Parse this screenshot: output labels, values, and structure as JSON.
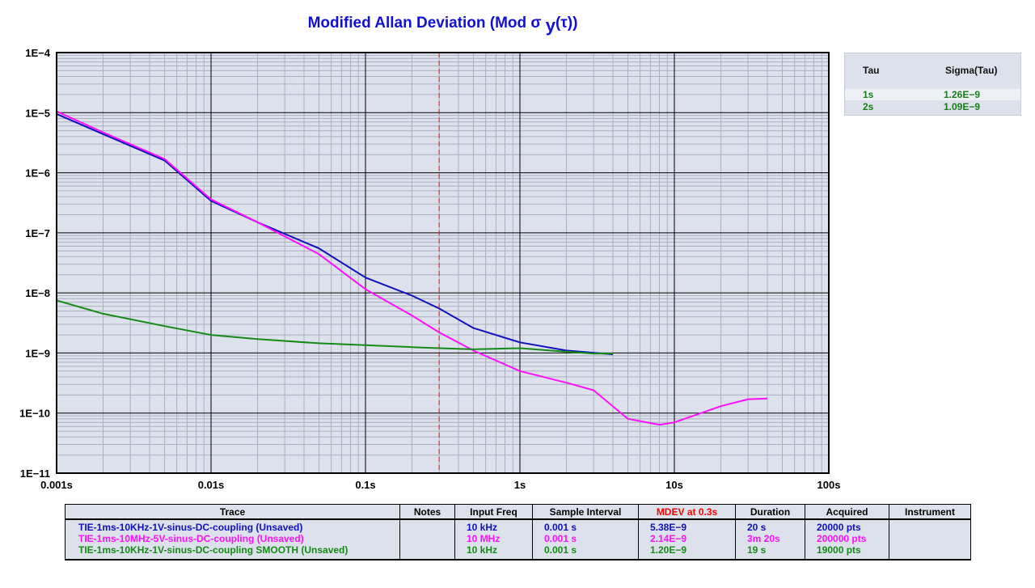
{
  "title_main": "Modified Allan Deviation (Mod σ ",
  "title_sub": "y",
  "title_end": "(τ))",
  "colors": {
    "plot_bg": "#dde1ec",
    "grid_major": "#000000",
    "grid_minor": "#a9b0c0",
    "marker": "#e01818"
  },
  "chart_data": {
    "type": "line",
    "title": "Modified Allan Deviation (Mod σ y(τ))",
    "x_scale": "log",
    "y_scale": "log",
    "xlim": [
      0.001,
      100
    ],
    "ylim": [
      1e-11,
      0.0001
    ],
    "x_ticks": [
      {
        "value": 0.001,
        "label": "0.001s"
      },
      {
        "value": 0.01,
        "label": "0.01s"
      },
      {
        "value": 0.1,
        "label": "0.1s"
      },
      {
        "value": 1,
        "label": "1s"
      },
      {
        "value": 10,
        "label": "10s"
      },
      {
        "value": 100,
        "label": "100s"
      }
    ],
    "y_ticks": [
      {
        "value": 0.0001,
        "label": "1E−4"
      },
      {
        "value": 1e-05,
        "label": "1E−5"
      },
      {
        "value": 1e-06,
        "label": "1E−6"
      },
      {
        "value": 1e-07,
        "label": "1E−7"
      },
      {
        "value": 1e-08,
        "label": "1E−8"
      },
      {
        "value": 1e-09,
        "label": "1E−9"
      },
      {
        "value": 1e-10,
        "label": "1E−10"
      },
      {
        "value": 1e-11,
        "label": "1E−11"
      }
    ],
    "grid": true,
    "marker_tau": 0.3,
    "series": [
      {
        "color": "#1010c0",
        "points": [
          [
            0.001,
            9.5e-06
          ],
          [
            0.002,
            4.4e-06
          ],
          [
            0.005,
            1.6e-06
          ],
          [
            0.01,
            3.4e-07
          ],
          [
            0.02,
            1.5e-07
          ],
          [
            0.05,
            5.5e-08
          ],
          [
            0.1,
            1.8e-08
          ],
          [
            0.2,
            9e-09
          ],
          [
            0.3,
            5.5e-09
          ],
          [
            0.5,
            2.6e-09
          ],
          [
            1,
            1.5e-09
          ],
          [
            2,
            1.1e-09
          ],
          [
            4,
            9.5e-10
          ]
        ]
      },
      {
        "color": "#ff10ff",
        "points": [
          [
            0.001,
            1.05e-05
          ],
          [
            0.002,
            4.7e-06
          ],
          [
            0.005,
            1.7e-06
          ],
          [
            0.01,
            3.6e-07
          ],
          [
            0.02,
            1.5e-07
          ],
          [
            0.05,
            4.4e-08
          ],
          [
            0.1,
            1.15e-08
          ],
          [
            0.2,
            4.2e-09
          ],
          [
            0.3,
            2.2e-09
          ],
          [
            0.5,
            1.1e-09
          ],
          [
            1,
            5e-10
          ],
          [
            2,
            3.2e-10
          ],
          [
            3,
            2.4e-10
          ],
          [
            5,
            8e-11
          ],
          [
            8,
            6.4e-11
          ],
          [
            10,
            7e-11
          ],
          [
            20,
            1.3e-10
          ],
          [
            30,
            1.7e-10
          ],
          [
            40,
            1.75e-10
          ]
        ]
      },
      {
        "color": "#148c14",
        "points": [
          [
            0.001,
            7.5e-09
          ],
          [
            0.002,
            4.5e-09
          ],
          [
            0.005,
            2.8e-09
          ],
          [
            0.01,
            2e-09
          ],
          [
            0.02,
            1.7e-09
          ],
          [
            0.05,
            1.45e-09
          ],
          [
            0.1,
            1.35e-09
          ],
          [
            0.2,
            1.25e-09
          ],
          [
            0.3,
            1.2e-09
          ],
          [
            0.5,
            1.15e-09
          ],
          [
            1,
            1.2e-09
          ],
          [
            2,
            1.05e-09
          ],
          [
            3,
            9.8e-10
          ],
          [
            4,
            9.8e-10
          ]
        ]
      }
    ]
  },
  "tau_panel": {
    "col_tau": "Tau",
    "col_sigma": "Sigma(Tau)",
    "rows": [
      {
        "tau": "1s",
        "sigma": "1.26E−9"
      },
      {
        "tau": "2s",
        "sigma": "1.09E−9"
      }
    ]
  },
  "trace_table": {
    "headers": [
      "Trace",
      "Notes",
      "Input Freq",
      "Sample Interval",
      "MDEV at 0.3s",
      "Duration",
      "Acquired",
      "Instrument"
    ],
    "rows": [
      {
        "color": "#1010c0",
        "trace": "TIE-1ms-10KHz-1V-sinus-DC-coupling  (Unsaved)",
        "notes": "",
        "freq": "10 kHz",
        "interval": "0.001 s",
        "mdev": "5.38E−9",
        "duration": "20 s",
        "acquired": "20000 pts",
        "instrument": ""
      },
      {
        "color": "#ff10ff",
        "trace": "TIE-1ms-10MHz-5V-sinus-DC-coupling  (Unsaved)",
        "notes": "",
        "freq": "10 MHz",
        "interval": "0.001 s",
        "mdev": "2.14E−9",
        "duration": "3m 20s",
        "acquired": "200000 pts",
        "instrument": ""
      },
      {
        "color": "#148c14",
        "trace": "TIE-1ms-10KHz-1V-sinus-DC-coupling  SMOOTH  (Unsaved)",
        "notes": "",
        "freq": "10 kHz",
        "interval": "0.001 s",
        "mdev": "1.20E−9",
        "duration": "19 s",
        "acquired": "19000 pts",
        "instrument": ""
      }
    ]
  }
}
